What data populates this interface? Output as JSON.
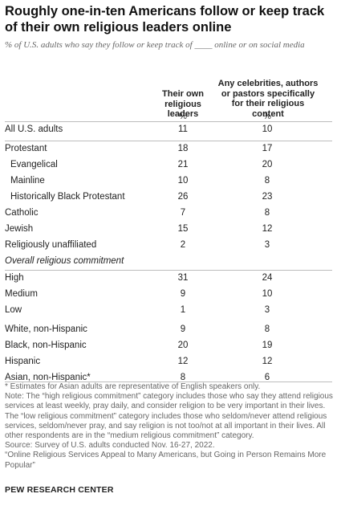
{
  "title": "Roughly one-in-ten Americans follow or keep track of their own religious leaders online",
  "subtitle": "% of U.S. adults who say they follow or keep track of ____ online or on social media",
  "chart_data": {
    "type": "table",
    "columns": [
      {
        "header": "Their own religious leaders",
        "unit": "%"
      },
      {
        "header": "Any celebrities, authors or pastors specifically for their religious content",
        "unit": "%"
      }
    ],
    "rows": [
      {
        "label": "All U.S. adults",
        "values": [
          11,
          10
        ],
        "indent": false
      },
      {
        "label": "Protestant",
        "values": [
          18,
          17
        ],
        "indent": false
      },
      {
        "label": "Evangelical",
        "values": [
          21,
          20
        ],
        "indent": true
      },
      {
        "label": "Mainline",
        "values": [
          10,
          8
        ],
        "indent": true
      },
      {
        "label": "Historically Black Protestant",
        "values": [
          26,
          23
        ],
        "indent": true
      },
      {
        "label": "Catholic",
        "values": [
          7,
          8
        ],
        "indent": false
      },
      {
        "label": "Jewish",
        "values": [
          15,
          12
        ],
        "indent": false
      },
      {
        "label": "Religiously unaffiliated",
        "values": [
          2,
          3
        ],
        "indent": false
      },
      {
        "section": "Overall religious commitment"
      },
      {
        "label": "High",
        "values": [
          31,
          24
        ],
        "indent": false
      },
      {
        "label": "Medium",
        "values": [
          9,
          10
        ],
        "indent": false
      },
      {
        "label": "Low",
        "values": [
          1,
          3
        ],
        "indent": false
      },
      {
        "label": "White, non-Hispanic",
        "values": [
          9,
          8
        ],
        "indent": false
      },
      {
        "label": "Black, non-Hispanic",
        "values": [
          20,
          19
        ],
        "indent": false
      },
      {
        "label": "Hispanic",
        "values": [
          12,
          12
        ],
        "indent": false
      },
      {
        "label": "Asian, non-Hispanic*",
        "values": [
          8,
          6
        ],
        "indent": false
      }
    ]
  },
  "notes": [
    "* Estimates for Asian adults are representative of English speakers only.",
    "Note: The “high religious commitment” category includes those who say they attend religious services at least weekly, pray daily, and consider religion to be very important in their lives. The “low religious commitment” category includes those who seldom/never attend religious services, seldom/never pray, and say religion is not too/not at all important in their lives. All other respondents are in the “medium religious commitment” category.",
    "Source: Survey of U.S. adults conducted Nov. 16-27, 2022.",
    "“Online Religious Services Appeal to Many Americans, but Going in Person Remains More Popular”"
  ],
  "source_org": "PEW RESEARCH CENTER"
}
